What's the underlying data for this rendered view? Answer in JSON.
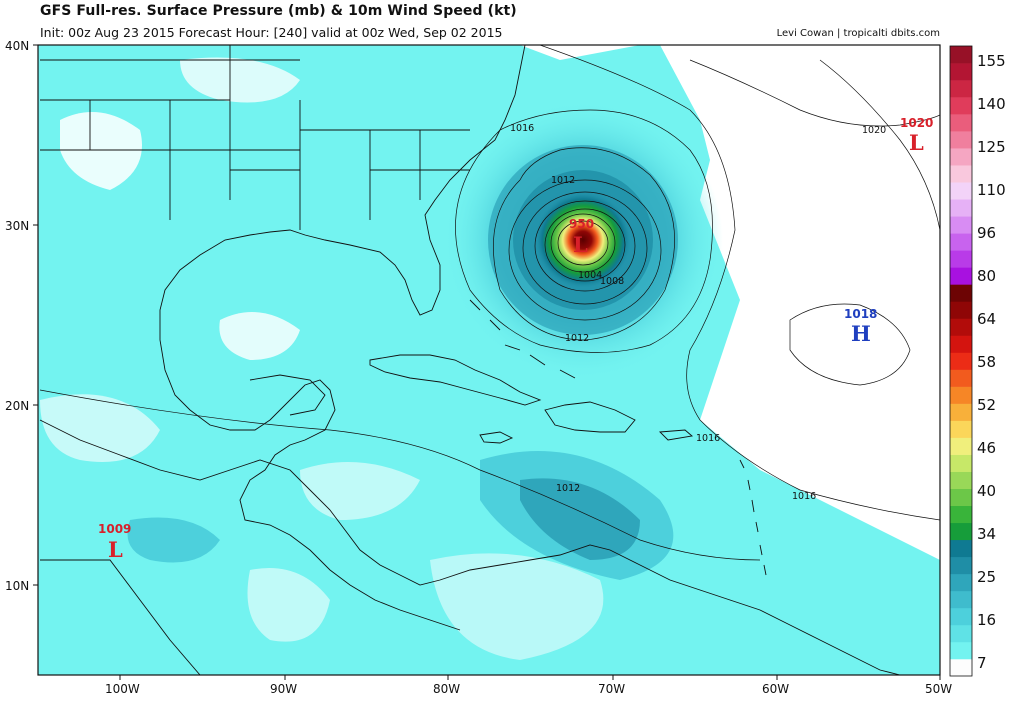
{
  "header": {
    "title": "GFS Full-res. Surface Pressure (mb) & 10m Wind Speed (kt)",
    "subtitle": "Init: 00z Aug 23 2015   Forecast Hour: [240]   valid at 00z Wed, Sep 02 2015",
    "credit": "Levi Cowan | tropicalti dbits.com"
  },
  "axes": {
    "lat_labels": [
      "40N",
      "30N",
      "20N",
      "10N"
    ],
    "lon_labels": [
      "100W",
      "90W",
      "80W",
      "70W",
      "60W",
      "50W"
    ]
  },
  "colorbar": {
    "labels": [
      "155",
      "140",
      "125",
      "110",
      "96",
      "80",
      "64",
      "58",
      "52",
      "46",
      "40",
      "34",
      "25",
      "16",
      "7"
    ],
    "colors": [
      "#fdfdfd",
      "#73f3f0",
      "#5fe2e6",
      "#4dd0dc",
      "#3fbccd",
      "#2fa6bb",
      "#1f8ea6",
      "#0f7a92",
      "#169d3a",
      "#39b43a",
      "#6cc748",
      "#99d858",
      "#c7e868",
      "#f0ef7c",
      "#fbd65a",
      "#f8b03a",
      "#f68626",
      "#f25b1e",
      "#ec2c16",
      "#d4140f",
      "#b20c0a",
      "#8f0606",
      "#6d0404",
      "#a811e0",
      "#b93be8",
      "#c863ee",
      "#d88cf3",
      "#e6b1f6",
      "#f3d3f8",
      "#f9c8dd",
      "#f5a6c2",
      "#f07f9e",
      "#ea5d7c",
      "#e03c5b",
      "#cc2643",
      "#b31533",
      "#971127"
    ]
  },
  "pressure_systems": [
    {
      "type": "L",
      "value": "950",
      "color": "#d8202a"
    },
    {
      "type": "L",
      "value": "1020",
      "color": "#d8202a"
    },
    {
      "type": "H",
      "value": "1018",
      "color": "#1f3fbf"
    },
    {
      "type": "L",
      "value": "1009",
      "color": "#d8202a"
    }
  ],
  "isobar_labels": [
    "1016",
    "1012",
    "1008",
    "1004",
    "1012",
    "1020",
    "1016",
    "1016",
    "1012"
  ]
}
